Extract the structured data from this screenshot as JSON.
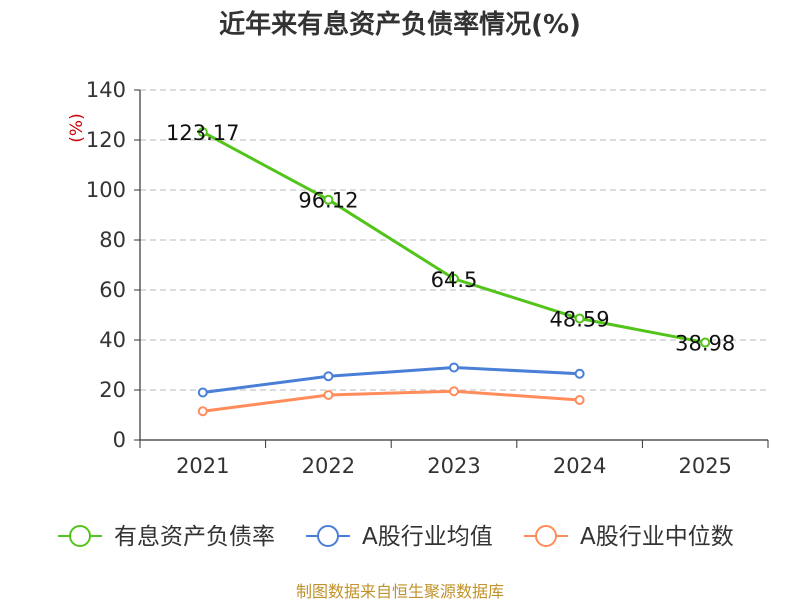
{
  "chart_data": {
    "type": "line",
    "title": "近年来有息资产负债率情况(%)",
    "ylabel": "(%)",
    "xlabel": "",
    "categories": [
      "2021",
      "2022",
      "2023",
      "2024",
      "2025"
    ],
    "ylim": [
      0,
      140
    ],
    "yticks": [
      "0",
      "20",
      "40",
      "60",
      "80",
      "100",
      "120",
      "140"
    ],
    "grid": true,
    "legend_position": "bottom",
    "series": [
      {
        "name": "有息资产负债率",
        "color": "#52c41a",
        "values": [
          123.17,
          96.12,
          64.5,
          48.59,
          38.98
        ],
        "labels": [
          "123.17",
          "96.12",
          "64.5",
          "48.59",
          "38.98"
        ]
      },
      {
        "name": "A股行业均值",
        "color": "#4a7fd8",
        "values": [
          19.0,
          25.5,
          29.0,
          26.5,
          null
        ]
      },
      {
        "name": "A股行业中位数",
        "color": "#ff8c5a",
        "values": [
          11.5,
          18.0,
          19.5,
          16.0,
          null
        ]
      }
    ],
    "source": "制图数据来自恒生聚源数据库"
  }
}
